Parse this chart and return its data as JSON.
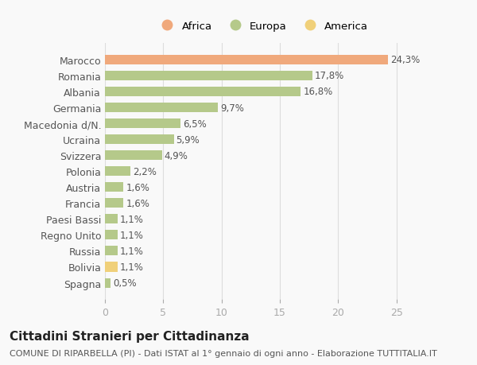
{
  "categories": [
    "Marocco",
    "Romania",
    "Albania",
    "Germania",
    "Macedonia d/N.",
    "Ucraina",
    "Svizzera",
    "Polonia",
    "Austria",
    "Francia",
    "Paesi Bassi",
    "Regno Unito",
    "Russia",
    "Bolivia",
    "Spagna"
  ],
  "values": [
    24.3,
    17.8,
    16.8,
    9.7,
    6.5,
    5.9,
    4.9,
    2.2,
    1.6,
    1.6,
    1.1,
    1.1,
    1.1,
    1.1,
    0.5
  ],
  "labels": [
    "24,3%",
    "17,8%",
    "16,8%",
    "9,7%",
    "6,5%",
    "5,9%",
    "4,9%",
    "2,2%",
    "1,6%",
    "1,6%",
    "1,1%",
    "1,1%",
    "1,1%",
    "1,1%",
    "0,5%"
  ],
  "colors": [
    "#f0a97c",
    "#b5c98a",
    "#b5c98a",
    "#b5c98a",
    "#b5c98a",
    "#b5c98a",
    "#b5c98a",
    "#b5c98a",
    "#b5c98a",
    "#b5c98a",
    "#b5c98a",
    "#b5c98a",
    "#b5c98a",
    "#f0d07a",
    "#b5c98a"
  ],
  "legend_labels": [
    "Africa",
    "Europa",
    "America"
  ],
  "legend_colors": [
    "#f0a97c",
    "#b5c98a",
    "#f0d07a"
  ],
  "xlim": [
    0,
    27
  ],
  "xticks": [
    0,
    5,
    10,
    15,
    20,
    25
  ],
  "title": "Cittadini Stranieri per Cittadinanza",
  "subtitle": "COMUNE DI RIPARBELLA (PI) - Dati ISTAT al 1° gennaio di ogni anno - Elaborazione TUTTITALIA.IT",
  "bg_color": "#f9f9f9",
  "bar_height": 0.6,
  "label_fontsize": 8.5,
  "ylabel_fontsize": 9,
  "title_fontsize": 11,
  "subtitle_fontsize": 8
}
